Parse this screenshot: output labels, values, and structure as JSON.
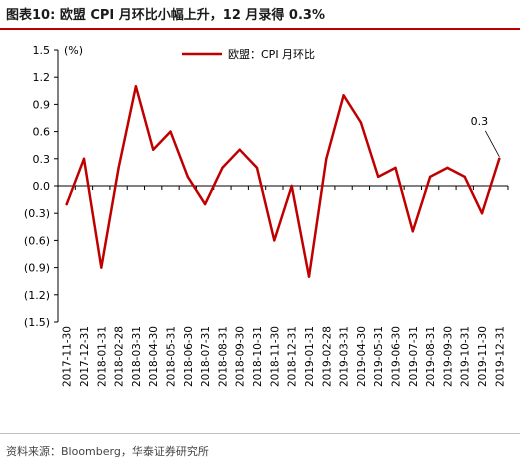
{
  "figure": {
    "title": "图表10:   欧盟 CPI 月环比小幅上升，12 月录得 0.3%",
    "source": "资料来源：Bloomberg，华泰证券研究所"
  },
  "colors": {
    "line": "#c00000",
    "rule": "#c00000"
  },
  "chart_data": {
    "type": "line",
    "title": "",
    "xlabel": "",
    "ylabel": "",
    "unit_label": "(%)",
    "ylim": [
      -1.5,
      1.5
    ],
    "y_ticks": [
      1.5,
      1.2,
      0.9,
      0.6,
      0.3,
      0.0,
      -0.3,
      -0.6,
      -0.9,
      -1.2,
      -1.5
    ],
    "y_tick_labels": [
      "1.5",
      "1.2",
      "0.9",
      "0.6",
      "0.3",
      "0.0",
      "(0.3)",
      "(0.6)",
      "(0.9)",
      "(1.2)",
      "(1.5)"
    ],
    "grid": false,
    "legend_position": "top-center",
    "x": [
      "2017-11-30",
      "2017-12-31",
      "2018-01-31",
      "2018-02-28",
      "2018-03-31",
      "2018-04-30",
      "2018-05-31",
      "2018-06-30",
      "2018-07-31",
      "2018-08-31",
      "2018-09-30",
      "2018-10-31",
      "2018-11-30",
      "2018-12-31",
      "2019-01-31",
      "2019-02-28",
      "2019-03-31",
      "2019-04-30",
      "2019-05-31",
      "2019-06-30",
      "2019-07-31",
      "2019-08-31",
      "2019-09-30",
      "2019-10-31",
      "2019-11-30",
      "2019-12-31"
    ],
    "series": [
      {
        "name": "欧盟：CPI 月环比",
        "values": [
          -0.2,
          0.3,
          -0.9,
          0.2,
          1.1,
          0.4,
          0.6,
          0.1,
          -0.2,
          0.2,
          0.4,
          0.2,
          -0.6,
          0.0,
          -1.0,
          0.3,
          1.0,
          0.7,
          0.1,
          0.2,
          -0.5,
          0.1,
          0.2,
          0.1,
          -0.3,
          0.3
        ]
      }
    ],
    "annotations": [
      {
        "x": "2019-12-31",
        "text": "0.3"
      }
    ]
  }
}
